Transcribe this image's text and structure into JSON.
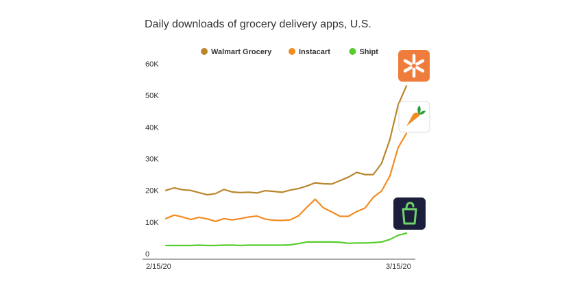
{
  "chart_data": {
    "type": "line",
    "title": "Daily downloads of grocery delivery apps, U.S.",
    "xlabel": "",
    "ylabel": "",
    "x_tick_labels": [
      "2/15/20",
      "3/15/20"
    ],
    "y_ticks": [
      0,
      10000,
      20000,
      30000,
      40000,
      50000,
      60000
    ],
    "y_tick_labels": [
      "0",
      "10K",
      "20K",
      "30K",
      "40K",
      "50K",
      "60K"
    ],
    "ylim": [
      0,
      60000
    ],
    "x": [
      "2/15/20",
      "2/16/20",
      "2/17/20",
      "2/18/20",
      "2/19/20",
      "2/20/20",
      "2/21/20",
      "2/22/20",
      "2/23/20",
      "2/24/20",
      "2/25/20",
      "2/26/20",
      "2/27/20",
      "2/28/20",
      "2/29/20",
      "3/1/20",
      "3/2/20",
      "3/3/20",
      "3/4/20",
      "3/5/20",
      "3/6/20",
      "3/7/20",
      "3/8/20",
      "3/9/20",
      "3/10/20",
      "3/11/20",
      "3/12/20",
      "3/13/20",
      "3/14/20",
      "3/15/20"
    ],
    "grid": false,
    "legend_position": "top-center",
    "series": [
      {
        "name": "Walmart Grocery",
        "color": "#b8862b",
        "logo": "walmart-spark-icon",
        "values": [
          20000,
          20800,
          20200,
          20000,
          19300,
          18600,
          19000,
          20300,
          19500,
          19300,
          19400,
          19200,
          19900,
          19700,
          19400,
          20100,
          20600,
          21400,
          22400,
          22100,
          22000,
          23100,
          24200,
          25700,
          25000,
          25000,
          28500,
          36000,
          47000,
          53000
        ]
      },
      {
        "name": "Instacart",
        "color": "#f28b20",
        "logo": "instacart-carrot-icon",
        "values": [
          11100,
          12200,
          11600,
          10800,
          11500,
          11000,
          10200,
          11100,
          10700,
          11100,
          11600,
          11900,
          10900,
          10600,
          10500,
          10700,
          12000,
          14700,
          17200,
          14500,
          13200,
          11800,
          11800,
          13300,
          14400,
          17800,
          19800,
          24500,
          33500,
          38000
        ]
      },
      {
        "name": "Shipt",
        "color": "#56cc2a",
        "logo": "shipt-bag-icon",
        "values": [
          2600,
          2600,
          2600,
          2600,
          2700,
          2600,
          2600,
          2700,
          2700,
          2600,
          2700,
          2700,
          2700,
          2700,
          2700,
          2800,
          3200,
          3700,
          3700,
          3700,
          3700,
          3600,
          3300,
          3400,
          3400,
          3500,
          3700,
          4500,
          5800,
          6500
        ]
      }
    ]
  }
}
